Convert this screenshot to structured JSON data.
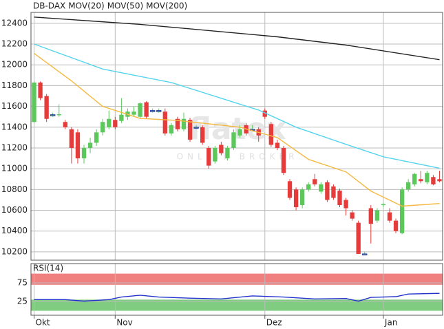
{
  "chart_data": [
    {
      "type": "candlestick",
      "title": "DB-DAX",
      "title_color": "#e03030",
      "watermark": [
        "flatex",
        "ONLINE BROKER"
      ],
      "up_color": "#5cc85c",
      "down_color": "#e53b3b",
      "ylim": [
        10120,
        12505
      ],
      "yticks": [
        10200,
        10400,
        10600,
        10800,
        11000,
        11200,
        11400,
        11600,
        11800,
        12000,
        12200,
        12400
      ],
      "xlim": [
        -0.5,
        65.5
      ],
      "xticks": [
        {
          "value": 0,
          "label": "Okt"
        },
        {
          "value": 13,
          "label": "Nov"
        },
        {
          "value": 37,
          "label": "Dez"
        },
        {
          "value": 56,
          "label": "Jan"
        }
      ],
      "grid": true,
      "open": [
        11450,
        11830,
        11700,
        11520,
        11520,
        11450,
        11380,
        11350,
        11100,
        11200,
        11250,
        11350,
        11400,
        11470,
        11460,
        11500,
        11520,
        11500,
        11640,
        11560,
        11560,
        11550,
        11340,
        11480,
        11380,
        11470,
        11400,
        11400,
        11200,
        11070,
        11230,
        11100,
        11200,
        11320,
        11420,
        11380,
        11380,
        11560,
        11430,
        11250,
        11200,
        10880,
        10800,
        10650,
        10800,
        10900,
        10780,
        10870,
        10830,
        10790,
        10700,
        10580,
        10480,
        10180,
        10620,
        10500,
        10650,
        10580,
        10500,
        10380,
        10800,
        10850,
        10900,
        10870,
        10920,
        10900
      ],
      "high": [
        11840,
        11840,
        11720,
        11540,
        11620,
        11470,
        11400,
        11380,
        11230,
        11300,
        11380,
        11480,
        11560,
        11500,
        11680,
        11580,
        11600,
        11640,
        11650,
        11580,
        11580,
        11580,
        11440,
        11500,
        11540,
        11490,
        11420,
        11420,
        11220,
        11220,
        11260,
        11220,
        11380,
        11420,
        11440,
        11420,
        11400,
        11580,
        11450,
        11280,
        11220,
        10900,
        10820,
        10820,
        10870,
        10950,
        10870,
        10890,
        10850,
        10810,
        10720,
        10600,
        10500,
        10200,
        10650,
        10620,
        10670,
        10620,
        10520,
        10820,
        10900,
        10960,
        10980,
        10980,
        10940,
        10980
      ],
      "low": [
        11440,
        11660,
        11450,
        11500,
        11500,
        11380,
        11050,
        11050,
        11050,
        11150,
        11220,
        11320,
        11380,
        11380,
        11440,
        11470,
        11500,
        11480,
        11480,
        11540,
        11540,
        11320,
        11320,
        11360,
        11360,
        11260,
        11380,
        11230,
        11000,
        11050,
        11130,
        11080,
        11180,
        11300,
        11320,
        11360,
        11260,
        11480,
        11210,
        11180,
        10940,
        10700,
        10600,
        10620,
        10780,
        10830,
        10760,
        10680,
        10700,
        10630,
        10550,
        10500,
        10180,
        10170,
        10280,
        10480,
        10630,
        10480,
        10380,
        10370,
        10780,
        10830,
        10860,
        10850,
        10840,
        10870
      ],
      "close": [
        11830,
        11680,
        11480,
        11520,
        11525,
        11400,
        11200,
        11100,
        11200,
        11250,
        11350,
        11450,
        11480,
        11400,
        11520,
        11550,
        11550,
        11630,
        11500,
        11560,
        11560,
        11340,
        11420,
        11380,
        11480,
        11280,
        11400,
        11250,
        11030,
        11200,
        11150,
        11200,
        11350,
        11380,
        11340,
        11380,
        11320,
        11500,
        11230,
        11200,
        10960,
        10720,
        10630,
        10800,
        10850,
        10850,
        10850,
        10700,
        10720,
        10650,
        10620,
        10520,
        10180,
        10180,
        10470,
        10600,
        10660,
        10500,
        10400,
        10800,
        10870,
        10950,
        10880,
        10960,
        10850,
        10880
      ],
      "series": [
        {
          "name": "MOV(20)",
          "color": "#f5b942",
          "x": [
            0,
            6,
            11,
            17,
            23,
            33,
            39,
            44,
            50,
            54,
            59,
            65
          ],
          "values": [
            12110,
            11845,
            11600,
            11485,
            11465,
            11400,
            11300,
            11090,
            10970,
            10785,
            10640,
            10665
          ]
        },
        {
          "name": "MOV(50)",
          "color": "#55d4ee",
          "x": [
            0,
            11,
            22,
            36,
            42,
            50,
            56,
            65
          ],
          "values": [
            12200,
            11960,
            11830,
            11565,
            11400,
            11235,
            11115,
            11005
          ]
        },
        {
          "name": "MOV(200)",
          "color": "#222222",
          "x": [
            0,
            17,
            39,
            50,
            65
          ],
          "values": [
            12460,
            12390,
            12270,
            12190,
            12050
          ]
        }
      ]
    },
    {
      "type": "line",
      "title": "RSI(14)",
      "title_color": "#2233aa",
      "ylim": [
        -12,
        127
      ],
      "yticks": [
        25,
        75
      ],
      "bands": [
        {
          "from": 70,
          "to": 100,
          "color": "#f08080"
        },
        {
          "from": 0,
          "to": 30,
          "color": "#80cc80"
        }
      ],
      "series": [
        {
          "name": "RSI(14)",
          "color": "#2233cc",
          "x": [
            0,
            5,
            8,
            12,
            14,
            17,
            20,
            25,
            30,
            35,
            40,
            45,
            50,
            52,
            54,
            58,
            60,
            65
          ],
          "values": [
            30,
            30,
            26,
            30,
            37,
            42,
            37,
            34,
            32,
            40,
            37,
            32,
            33,
            26,
            36,
            38,
            45,
            47
          ]
        }
      ]
    }
  ]
}
